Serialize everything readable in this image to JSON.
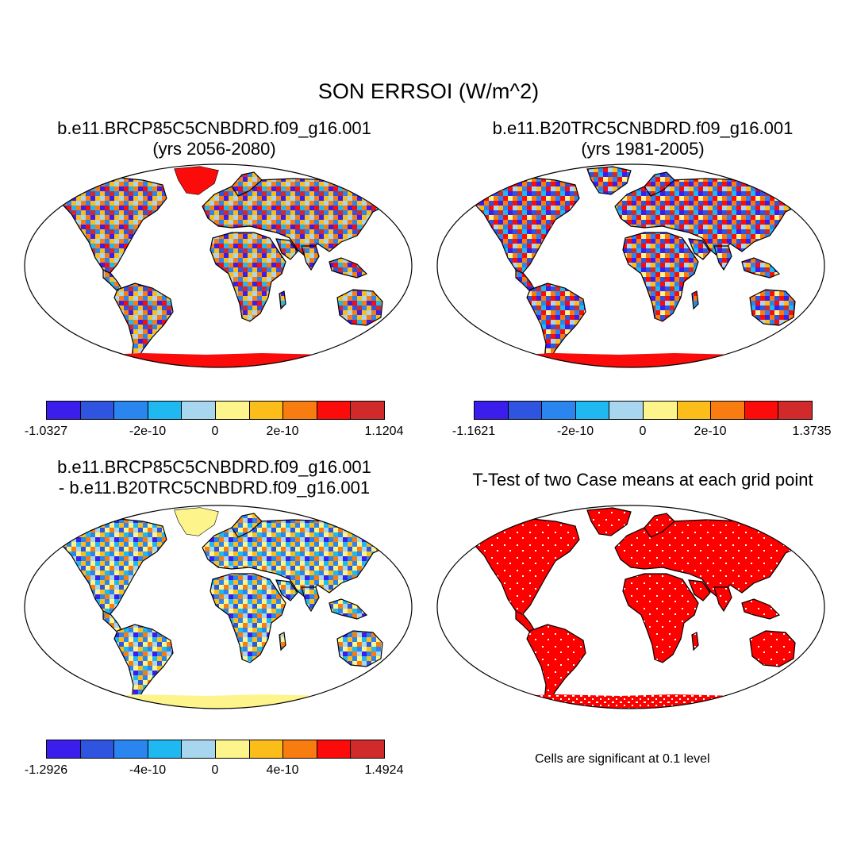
{
  "title": "SON ERRSOI (W/m^2)",
  "colors": {
    "palette": [
      "#3b1eeb",
      "#2f55e0",
      "#2a86ee",
      "#1fb8f0",
      "#a8d6ef",
      "#fdf58c",
      "#fbbd19",
      "#f97c10",
      "#fc0b0b",
      "#d12a2a"
    ],
    "significance": "#ff0000",
    "land_outline": "#000000"
  },
  "panels": [
    {
      "title_line1": "b.e11.BRCP85C5CNBDRD.f09_g16.001",
      "title_line2": "(yrs 2056-2080)",
      "colorbar": {
        "min_label": "-1.0327",
        "neg_label": "-2e-10",
        "zero_label": "0",
        "pos_label": "2e-10",
        "max_label": "1.1204"
      }
    },
    {
      "title_line1": "b.e11.B20TRC5CNBDRD.f09_g16.001",
      "title_line2": "(yrs 1981-2005)",
      "colorbar": {
        "min_label": "-1.1621",
        "neg_label": "-2e-10",
        "zero_label": "0",
        "pos_label": "2e-10",
        "max_label": "1.3735"
      }
    },
    {
      "title_line1": "b.e11.BRCP85C5CNBDRD.f09_g16.001",
      "title_line2": "- b.e11.B20TRC5CNBDRD.f09_g16.001",
      "colorbar": {
        "min_label": "-1.2926",
        "neg_label": "-4e-10",
        "zero_label": "0",
        "pos_label": "4e-10",
        "max_label": "1.4924"
      }
    },
    {
      "title_line1": "T-Test of two Case means at each grid point",
      "note": "Cells are significant at 0.1 level"
    }
  ]
}
